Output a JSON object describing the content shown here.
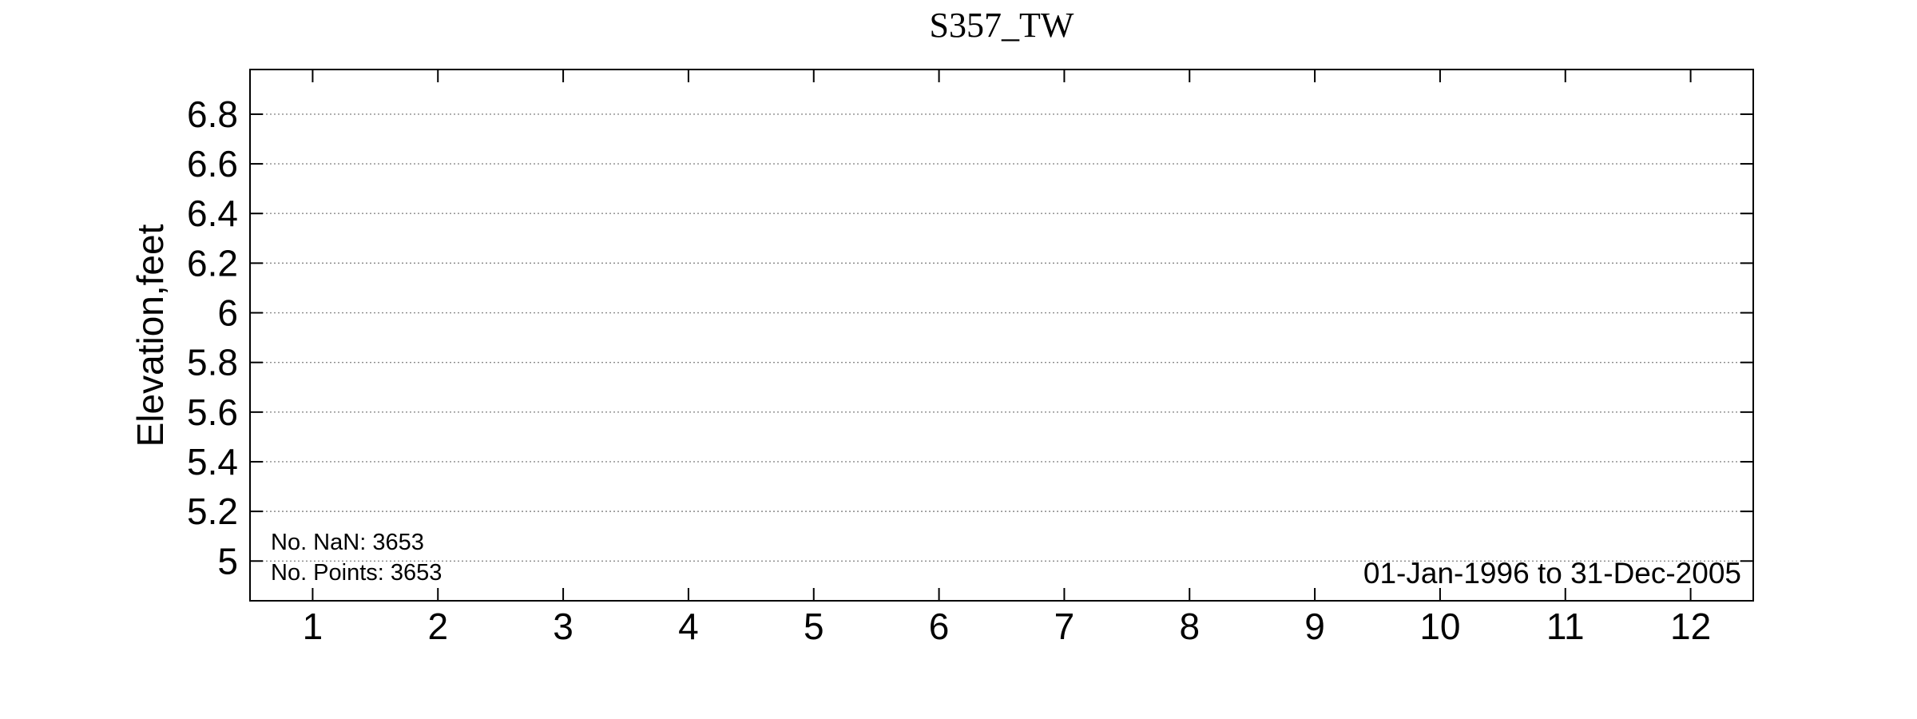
{
  "chart_data": {
    "type": "line",
    "title": "S357_TW",
    "xlabel": "",
    "ylabel": "Elevation,feet",
    "x_ticks": [
      "1",
      "2",
      "3",
      "4",
      "5",
      "6",
      "7",
      "8",
      "9",
      "10",
      "11",
      "12"
    ],
    "y_ticks": [
      "5",
      "5.2",
      "5.4",
      "5.6",
      "5.8",
      "6",
      "6.2",
      "6.4",
      "6.6",
      "6.8"
    ],
    "xlim": [
      0.5,
      12.5
    ],
    "ylim": [
      4.84,
      6.98
    ],
    "grid": "horizontal-dotted",
    "series": [],
    "annotations": {
      "nan_count": "No. NaN: 3653",
      "point_count": "No. Points: 3653",
      "date_range": "01-Jan-1996 to 31-Dec-2005"
    }
  }
}
